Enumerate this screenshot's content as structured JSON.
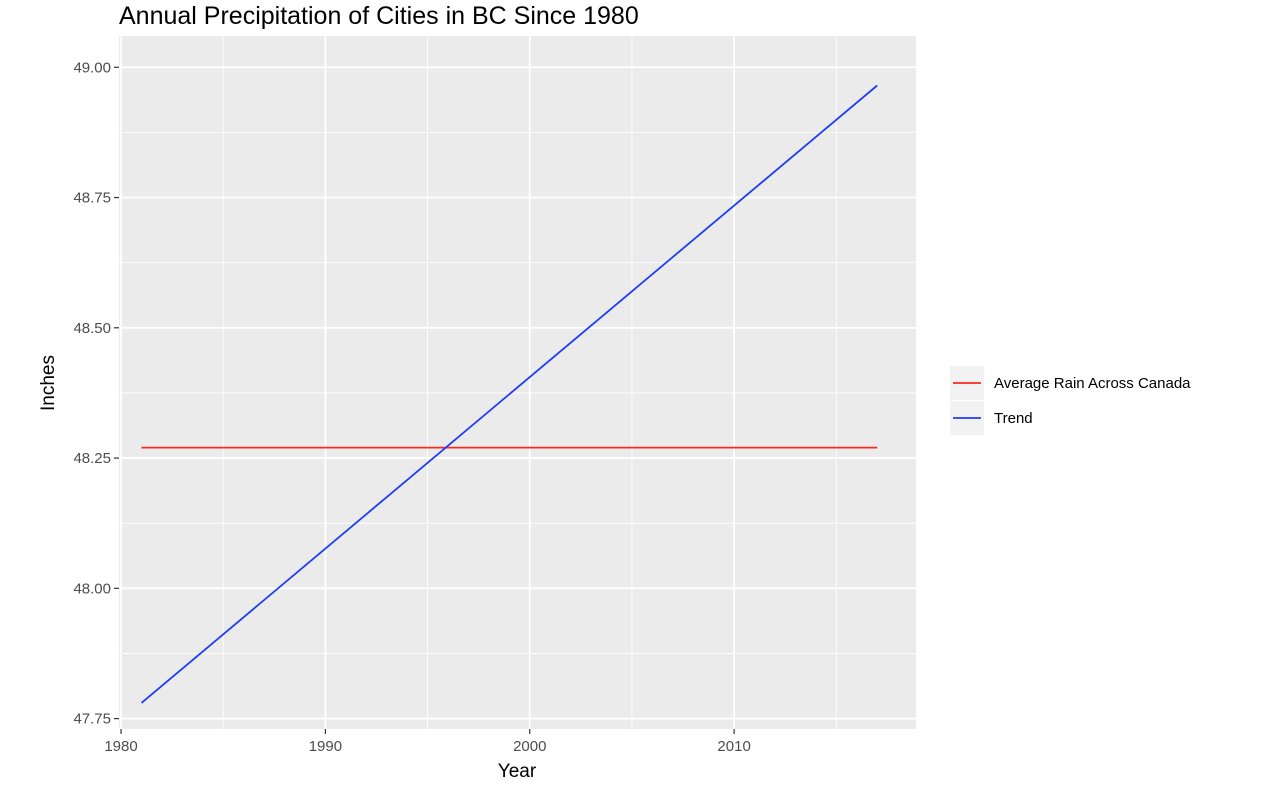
{
  "chart_data": {
    "type": "line",
    "title": "Annual Precipitation of Cities in BC Since 1980",
    "xlabel": "Year",
    "ylabel": "Inches",
    "xlim": [
      1979.9,
      2018.9
    ],
    "ylim": [
      47.73,
      49.06
    ],
    "x_ticks": [
      1980,
      1990,
      2000,
      2010
    ],
    "x_tick_labels": [
      "1980",
      "1990",
      "2000",
      "2010"
    ],
    "y_ticks": [
      47.75,
      48.0,
      48.25,
      48.5,
      48.75,
      49.0
    ],
    "y_tick_labels": [
      "47.75",
      "48.00",
      "48.25",
      "48.50",
      "48.75",
      "49.00"
    ],
    "grid": true,
    "legend_position": "right",
    "series": [
      {
        "name": "Average Rain Across Canada",
        "color": "#f8291f",
        "x": [
          1981,
          2017
        ],
        "y": [
          48.27,
          48.27
        ]
      },
      {
        "name": "Trend",
        "color": "#1f3cf8",
        "x": [
          1981,
          2017
        ],
        "y": [
          47.78,
          48.965
        ]
      }
    ]
  }
}
